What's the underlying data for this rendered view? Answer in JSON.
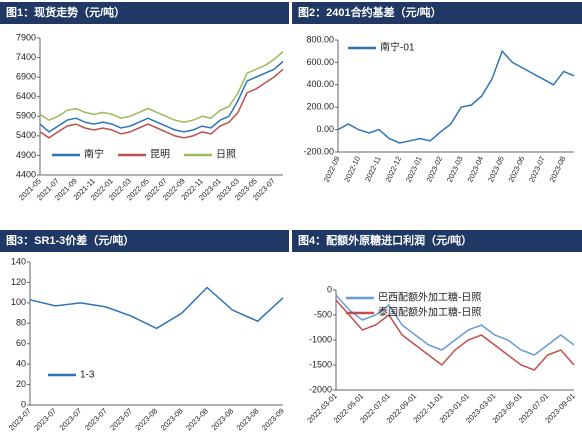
{
  "chart_data": [
    {
      "type": "line",
      "title": "图1：现货走势（元/吨）",
      "categories": [
        "2021-05",
        null,
        "2021-07",
        null,
        "2021-09",
        null,
        "2021-11",
        null,
        "2022-01",
        null,
        "2022-03",
        null,
        "2022-05",
        null,
        "2022-07",
        null,
        "2022-09",
        null,
        "2022-11",
        null,
        "2023-01",
        null,
        "2023-03",
        null,
        "2023-05",
        null,
        "2023-07",
        null
      ],
      "series": [
        {
          "name": "南宁",
          "color": "#2e75b6",
          "values": [
            5700,
            5500,
            5650,
            5800,
            5850,
            5750,
            5700,
            5750,
            5700,
            5600,
            5650,
            5750,
            5850,
            5750,
            5650,
            5550,
            5500,
            5550,
            5650,
            5600,
            5800,
            5900,
            6300,
            6800,
            6900,
            7000,
            7100,
            7300
          ]
        },
        {
          "name": "昆明",
          "color": "#c0504d",
          "values": [
            5500,
            5350,
            5500,
            5650,
            5700,
            5600,
            5550,
            5600,
            5550,
            5450,
            5500,
            5600,
            5700,
            5600,
            5500,
            5400,
            5350,
            5400,
            5500,
            5450,
            5650,
            5750,
            6000,
            6500,
            6600,
            6750,
            6900,
            7100
          ]
        },
        {
          "name": "日照",
          "color": "#9bbb59",
          "values": [
            5950,
            5800,
            5900,
            6050,
            6100,
            6000,
            5950,
            6000,
            5950,
            5850,
            5900,
            6000,
            6100,
            6000,
            5900,
            5800,
            5750,
            5800,
            5900,
            5850,
            6050,
            6150,
            6500,
            7000,
            7100,
            7200,
            7350,
            7550
          ]
        }
      ],
      "ylim": [
        4400,
        7900
      ],
      "yticks": [
        4400,
        4900,
        5400,
        5900,
        6400,
        6900,
        7400,
        7900
      ],
      "grid": false,
      "legend": "lower center"
    },
    {
      "type": "line",
      "title": "图2：2401合约基差（元/吨）",
      "categories": [
        "2022-09",
        null,
        "2022-10",
        null,
        "2022-11",
        null,
        "2022-12",
        null,
        "2023-01",
        null,
        "2023-02",
        null,
        "2023-03",
        null,
        "2023-04",
        null,
        "2023-05",
        null,
        "2023-06",
        null,
        "2023-07",
        null,
        "2023-08",
        null
      ],
      "series": [
        {
          "name": "南宁-01",
          "color": "#2e75b6",
          "values": [
            0,
            50,
            0,
            -30,
            0,
            -80,
            -120,
            -100,
            -80,
            -100,
            -20,
            50,
            200,
            220,
            300,
            450,
            700,
            600,
            550,
            500,
            450,
            400,
            520,
            480
          ]
        }
      ],
      "ylim": [
        -200,
        800
      ],
      "yticks": [
        {
          "value": -200,
          "label": "-200.00"
        },
        {
          "value": 0,
          "label": "0.00"
        },
        {
          "value": 200,
          "label": "200.00"
        },
        {
          "value": 400,
          "label": "400.00"
        },
        {
          "value": 600,
          "label": "600.00"
        },
        {
          "value": 800,
          "label": "800.00"
        }
      ],
      "grid": false,
      "legend": "upper left"
    },
    {
      "type": "line",
      "title": "图3：SR1-3价差（元/吨）",
      "categories": [
        "2023-07",
        "2023-07",
        "2023-07",
        "2023-07",
        "2023-07",
        "2023-08",
        "2023-08",
        "2023-08",
        "2023-08",
        "2023-08",
        "2023-09"
      ],
      "series": [
        {
          "name": "1-3",
          "color": "#2e75b6",
          "values": [
            103,
            97,
            100,
            96,
            87,
            75,
            90,
            115,
            93,
            82,
            105
          ]
        }
      ],
      "ylim": [
        0,
        140
      ],
      "yticks": [
        0,
        20,
        40,
        60,
        80,
        100,
        120,
        140
      ],
      "grid": false,
      "legend": "lower left"
    },
    {
      "type": "line",
      "title": "图4：配额外原糖进口利润（元/吨）",
      "categories": [
        "2022-03-01",
        null,
        "2022-05-01",
        null,
        "2022-07-01",
        null,
        "2022-09-01",
        null,
        "2022-11-01",
        null,
        "2023-01-01",
        null,
        "2023-03-01",
        null,
        "2023-05-01",
        null,
        "2023-07-01",
        null,
        "2023-09-01"
      ],
      "series": [
        {
          "name": "巴西配额外加工糖-日照",
          "color": "#6a9bd8",
          "values": [
            -100,
            -400,
            -600,
            -500,
            -300,
            -700,
            -900,
            -1100,
            -1200,
            -1000,
            -800,
            -700,
            -900,
            -1000,
            -1200,
            -1300,
            -1100,
            -900,
            -1100
          ]
        },
        {
          "name": "泰国配额外加工糖-日照",
          "color": "#c0504d",
          "values": [
            -200,
            -500,
            -800,
            -700,
            -500,
            -900,
            -1100,
            -1300,
            -1500,
            -1200,
            -1000,
            -900,
            -1100,
            -1300,
            -1500,
            -1600,
            -1300,
            -1200,
            -1500
          ]
        }
      ],
      "ylim": [
        -2000,
        0
      ],
      "yticks": [
        0,
        -500,
        -1000,
        -1500,
        -2000
      ],
      "grid": false,
      "legend": "upper left"
    }
  ]
}
